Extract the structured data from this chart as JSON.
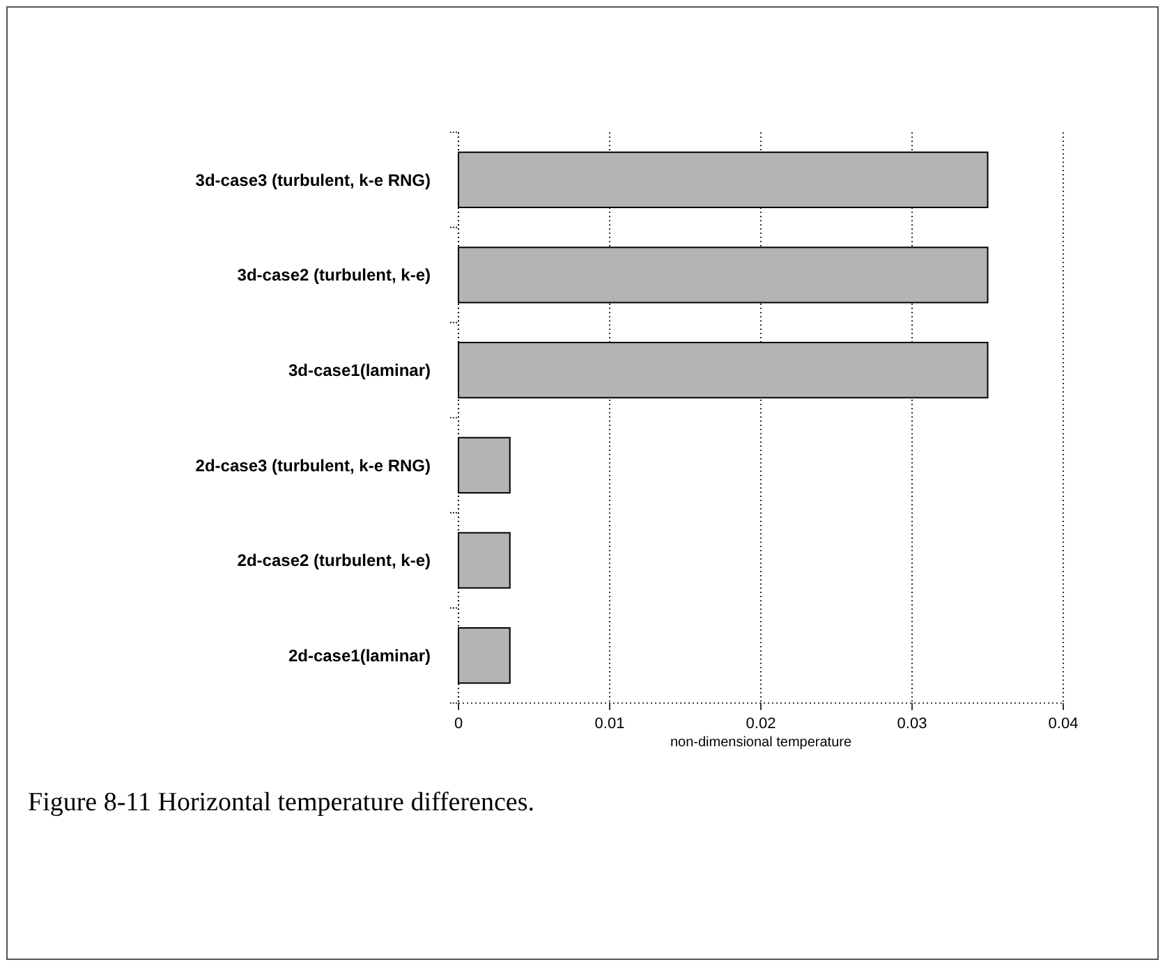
{
  "chart_data": {
    "type": "bar",
    "orientation": "horizontal",
    "xlabel": "non-dimensional temperature",
    "categories": [
      "3d-case3 (turbulent, k-e RNG)",
      "3d-case2 (turbulent, k-e)",
      "3d-case1(laminar)",
      "2d-case3 (turbulent, k-e RNG)",
      "2d-case2 (turbulent, k-e)",
      "2d-case1(laminar)"
    ],
    "values": [
      0.035,
      0.035,
      0.035,
      0.0034,
      0.0034,
      0.0034
    ],
    "color": "#b4b4b4",
    "xlim": [
      0,
      0.04
    ],
    "xticks": [
      0,
      0.01,
      0.02,
      0.03,
      0.04
    ],
    "grid": "x",
    "annotations": [
      "Figure 8-11 Horizontal temperature differences."
    ]
  }
}
